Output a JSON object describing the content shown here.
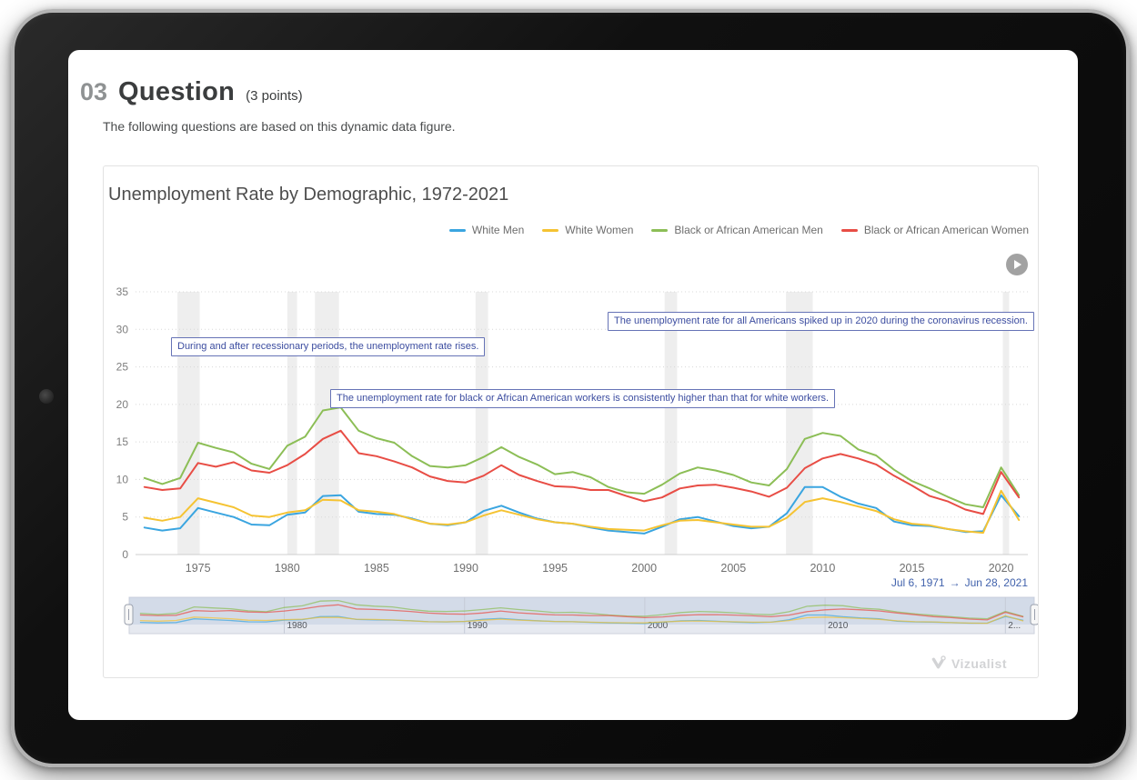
{
  "page": {
    "question_number": "03",
    "question_title": "Question",
    "points": "(3 points)",
    "instructions": "The following questions are based on this dynamic data figure."
  },
  "chart_card": {
    "title": "Unemployment Rate by Demographic, 1972-2021",
    "annotations": [
      "During and after recessionary periods, the unemployment rate rises.",
      "The unemployment rate for black or African American workers is consistently higher than that for white workers.",
      "The unemployment rate for all Americans spiked up in 2020 during the coronavirus recession."
    ],
    "date_range": {
      "start": "Jul 6, 1971",
      "arrow": "→",
      "end": "Jun 28, 2021"
    },
    "watermark": "Vizualist"
  },
  "chart_data": {
    "type": "line",
    "title": "Unemployment Rate by Demographic, 1972-2021",
    "xlabel": "",
    "ylabel": "",
    "ylim": [
      0,
      35
    ],
    "yticks": [
      0,
      5,
      10,
      15,
      20,
      25,
      30,
      35
    ],
    "xticks": [
      1975,
      1980,
      1985,
      1990,
      1995,
      2000,
      2005,
      2010,
      2015,
      2020
    ],
    "x_domain": [
      1971.5,
      2021.5
    ],
    "grid": "dotted-horizontal",
    "legend_position": "top-right",
    "x": [
      1972,
      1973,
      1974,
      1975,
      1976,
      1977,
      1978,
      1979,
      1980,
      1981,
      1982,
      1983,
      1984,
      1985,
      1986,
      1987,
      1988,
      1989,
      1990,
      1991,
      1992,
      1993,
      1994,
      1995,
      1996,
      1997,
      1998,
      1999,
      2000,
      2001,
      2002,
      2003,
      2004,
      2005,
      2006,
      2007,
      2008,
      2009,
      2010,
      2011,
      2012,
      2013,
      2014,
      2015,
      2016,
      2017,
      2018,
      2019,
      2020,
      2021
    ],
    "series": [
      {
        "name": "White Men",
        "color": "#3aa5e0",
        "values": [
          3.6,
          3.2,
          3.5,
          6.2,
          5.6,
          5.0,
          4.0,
          3.9,
          5.3,
          5.6,
          7.8,
          7.9,
          5.7,
          5.4,
          5.3,
          4.8,
          4.1,
          3.9,
          4.3,
          5.8,
          6.5,
          5.6,
          4.8,
          4.3,
          4.1,
          3.6,
          3.2,
          3.0,
          2.8,
          3.7,
          4.7,
          5.0,
          4.4,
          3.8,
          3.5,
          3.7,
          5.5,
          9.0,
          9.0,
          7.7,
          6.8,
          6.2,
          4.4,
          3.9,
          3.8,
          3.4,
          3.0,
          3.1,
          7.9,
          5.1
        ]
      },
      {
        "name": "White Women",
        "color": "#f5c332",
        "values": [
          4.9,
          4.5,
          5.0,
          7.5,
          6.9,
          6.3,
          5.2,
          5.0,
          5.6,
          5.9,
          7.3,
          7.2,
          5.9,
          5.7,
          5.4,
          4.7,
          4.1,
          4.0,
          4.3,
          5.2,
          5.9,
          5.3,
          4.7,
          4.3,
          4.1,
          3.7,
          3.4,
          3.3,
          3.2,
          3.9,
          4.5,
          4.6,
          4.3,
          4.0,
          3.7,
          3.7,
          4.9,
          7.0,
          7.5,
          7.0,
          6.4,
          5.8,
          4.7,
          4.1,
          3.9,
          3.4,
          3.1,
          2.9,
          8.5,
          4.6
        ]
      },
      {
        "name": "Black or African American Men",
        "color": "#8cbe56",
        "values": [
          10.2,
          9.4,
          10.2,
          14.9,
          14.2,
          13.6,
          12.1,
          11.4,
          14.5,
          15.7,
          19.2,
          19.6,
          16.5,
          15.5,
          14.9,
          13.1,
          11.8,
          11.6,
          11.9,
          13.0,
          14.3,
          13.0,
          12.0,
          10.7,
          11.0,
          10.3,
          9.0,
          8.3,
          8.1,
          9.3,
          10.8,
          11.6,
          11.2,
          10.6,
          9.6,
          9.2,
          11.4,
          15.4,
          16.2,
          15.8,
          14.0,
          13.2,
          11.3,
          9.8,
          8.8,
          7.7,
          6.7,
          6.3,
          11.6,
          7.9
        ]
      },
      {
        "name": "Black or African American Women",
        "color": "#e84d45",
        "values": [
          9.0,
          8.6,
          8.8,
          12.2,
          11.7,
          12.3,
          11.2,
          10.9,
          11.9,
          13.4,
          15.4,
          16.5,
          13.5,
          13.1,
          12.4,
          11.6,
          10.4,
          9.8,
          9.6,
          10.5,
          11.9,
          10.6,
          9.8,
          9.1,
          9.0,
          8.6,
          8.6,
          7.8,
          7.1,
          7.6,
          8.8,
          9.2,
          9.3,
          8.9,
          8.4,
          7.7,
          8.9,
          11.5,
          12.8,
          13.4,
          12.8,
          12.0,
          10.5,
          9.2,
          7.8,
          7.1,
          6.0,
          5.4,
          11.0,
          7.6
        ]
      }
    ],
    "recessions": [
      [
        1973.85,
        1975.1
      ],
      [
        1980.0,
        1980.55
      ],
      [
        1981.55,
        1982.9
      ],
      [
        1990.55,
        1991.25
      ],
      [
        2001.15,
        2001.85
      ],
      [
        2007.95,
        2009.45
      ],
      [
        2020.1,
        2020.45
      ]
    ],
    "minimap": {
      "years": [
        1980,
        1990,
        2000,
        2010,
        2020
      ],
      "labels": [
        "1980",
        "1990",
        "2000",
        "2010",
        "2..."
      ]
    }
  }
}
